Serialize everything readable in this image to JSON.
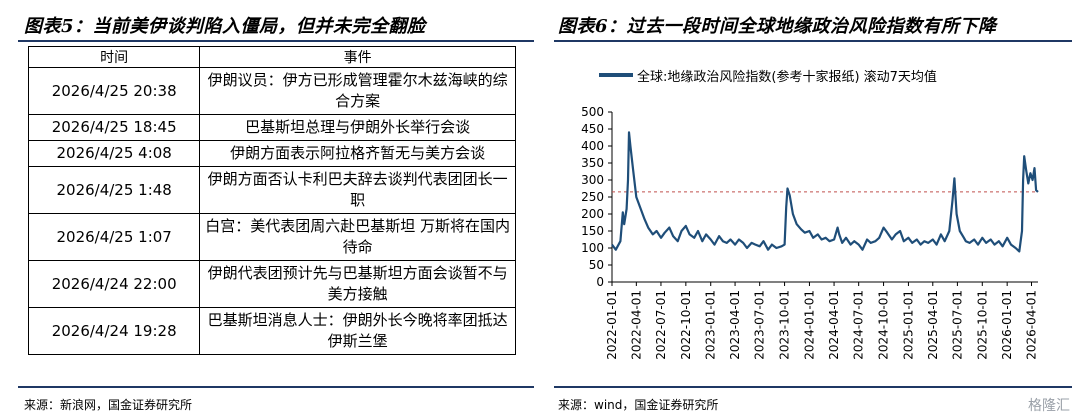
{
  "left_figure": {
    "title": "图表5：当前美伊谈判陷入僵局，但并未完全翻脸",
    "source": "来源：新浪网，国金证券研究所",
    "table": {
      "headers": [
        "时间",
        "事件"
      ],
      "rows": [
        {
          "time": "2026/4/25 20:38",
          "event": "伊朗议员：伊方已形成管理霍尔木兹海峡的综合方案"
        },
        {
          "time": "2026/4/25 18:45",
          "event": "巴基斯坦总理与伊朗外长举行会谈"
        },
        {
          "time": "2026/4/25 4:08",
          "event": "伊朗方面表示阿拉格齐暂无与美方会谈"
        },
        {
          "time": "2026/4/25 1:48",
          "event": "伊朗方面否认卡利巴夫辞去谈判代表团团长一职"
        },
        {
          "time": "2026/4/25 1:07",
          "event": "白宫：美代表团周六赴巴基斯坦 万斯将在国内待命"
        },
        {
          "time": "2026/4/24 22:00",
          "event": "伊朗代表团预计先与巴基斯坦方面会谈暂不与美方接触"
        },
        {
          "time": "2026/4/24 19:28",
          "event": "巴基斯坦消息人士：伊朗外长今晚将率团抵达伊斯兰堡"
        }
      ]
    }
  },
  "right_figure": {
    "title": "图表6：过去一段时间全球地缘政治风险指数有所下降",
    "source": "来源：wind，国金证券研究所"
  },
  "chart_data": {
    "type": "line",
    "title": "",
    "xlabel": "",
    "ylabel": "",
    "ylim": [
      0,
      500
    ],
    "yticks": [
      0,
      50,
      100,
      150,
      200,
      250,
      300,
      350,
      400,
      450,
      500
    ],
    "xticks": [
      "2022-01-01",
      "2022-04-01",
      "2022-07-01",
      "2022-10-01",
      "2023-01-01",
      "2023-04-01",
      "2023-07-01",
      "2023-10-01",
      "2024-01-01",
      "2024-04-01",
      "2024-07-01",
      "2024-10-01",
      "2025-01-01",
      "2025-04-01",
      "2025-07-01",
      "2025-10-01",
      "2026-01-01",
      "2026-04-01"
    ],
    "xrange": [
      "2022-01-01",
      "2026-04-25"
    ],
    "grid": false,
    "legend": "top-left",
    "reference_line": {
      "value": 265,
      "color": "#c0504d",
      "style": "dashed"
    },
    "series": [
      {
        "name": "全球:地缘政治风险指数(参考十家报纸) 滚动7天均值",
        "color": "#1f4e79",
        "points": [
          [
            "2022-01-01",
            110
          ],
          [
            "2022-01-15",
            95
          ],
          [
            "2022-02-01",
            120
          ],
          [
            "2022-02-10",
            205
          ],
          [
            "2022-02-15",
            170
          ],
          [
            "2022-02-24",
            215
          ],
          [
            "2022-03-01",
            300
          ],
          [
            "2022-03-05",
            440
          ],
          [
            "2022-03-10",
            400
          ],
          [
            "2022-03-20",
            330
          ],
          [
            "2022-04-01",
            250
          ],
          [
            "2022-04-15",
            220
          ],
          [
            "2022-05-01",
            185
          ],
          [
            "2022-05-15",
            160
          ],
          [
            "2022-06-01",
            140
          ],
          [
            "2022-06-15",
            150
          ],
          [
            "2022-07-01",
            130
          ],
          [
            "2022-07-15",
            145
          ],
          [
            "2022-08-01",
            160
          ],
          [
            "2022-08-15",
            135
          ],
          [
            "2022-09-01",
            120
          ],
          [
            "2022-09-15",
            150
          ],
          [
            "2022-10-01",
            165
          ],
          [
            "2022-10-15",
            140
          ],
          [
            "2022-11-01",
            130
          ],
          [
            "2022-11-15",
            150
          ],
          [
            "2022-12-01",
            120
          ],
          [
            "2022-12-15",
            140
          ],
          [
            "2023-01-01",
            125
          ],
          [
            "2023-01-15",
            110
          ],
          [
            "2023-02-01",
            135
          ],
          [
            "2023-02-15",
            120
          ],
          [
            "2023-03-01",
            115
          ],
          [
            "2023-03-15",
            125
          ],
          [
            "2023-04-01",
            110
          ],
          [
            "2023-04-15",
            125
          ],
          [
            "2023-05-01",
            115
          ],
          [
            "2023-05-15",
            100
          ],
          [
            "2023-06-01",
            115
          ],
          [
            "2023-06-15",
            110
          ],
          [
            "2023-07-01",
            105
          ],
          [
            "2023-07-15",
            120
          ],
          [
            "2023-08-01",
            95
          ],
          [
            "2023-08-15",
            110
          ],
          [
            "2023-09-01",
            100
          ],
          [
            "2023-09-20",
            105
          ],
          [
            "2023-10-01",
            110
          ],
          [
            "2023-10-07",
            220
          ],
          [
            "2023-10-12",
            275
          ],
          [
            "2023-10-20",
            255
          ],
          [
            "2023-11-01",
            200
          ],
          [
            "2023-11-15",
            170
          ],
          [
            "2023-12-01",
            155
          ],
          [
            "2023-12-15",
            145
          ],
          [
            "2024-01-01",
            150
          ],
          [
            "2024-01-15",
            130
          ],
          [
            "2024-02-01",
            140
          ],
          [
            "2024-02-15",
            125
          ],
          [
            "2024-03-01",
            130
          ],
          [
            "2024-03-15",
            120
          ],
          [
            "2024-04-01",
            125
          ],
          [
            "2024-04-14",
            160
          ],
          [
            "2024-04-20",
            140
          ],
          [
            "2024-05-01",
            115
          ],
          [
            "2024-05-15",
            130
          ],
          [
            "2024-06-01",
            110
          ],
          [
            "2024-06-15",
            120
          ],
          [
            "2024-07-01",
            110
          ],
          [
            "2024-07-15",
            95
          ],
          [
            "2024-08-01",
            125
          ],
          [
            "2024-08-15",
            115
          ],
          [
            "2024-09-01",
            120
          ],
          [
            "2024-09-15",
            130
          ],
          [
            "2024-10-01",
            160
          ],
          [
            "2024-10-15",
            145
          ],
          [
            "2024-11-01",
            125
          ],
          [
            "2024-11-15",
            140
          ],
          [
            "2024-12-01",
            150
          ],
          [
            "2024-12-15",
            120
          ],
          [
            "2025-01-01",
            130
          ],
          [
            "2025-01-15",
            115
          ],
          [
            "2025-02-01",
            125
          ],
          [
            "2025-02-15",
            110
          ],
          [
            "2025-03-01",
            120
          ],
          [
            "2025-03-15",
            115
          ],
          [
            "2025-04-01",
            125
          ],
          [
            "2025-04-15",
            110
          ],
          [
            "2025-05-01",
            140
          ],
          [
            "2025-05-15",
            120
          ],
          [
            "2025-06-01",
            150
          ],
          [
            "2025-06-13",
            240
          ],
          [
            "2025-06-20",
            305
          ],
          [
            "2025-06-28",
            200
          ],
          [
            "2025-07-10",
            150
          ],
          [
            "2025-07-25",
            130
          ],
          [
            "2025-08-01",
            120
          ],
          [
            "2025-08-15",
            115
          ],
          [
            "2025-09-01",
            125
          ],
          [
            "2025-09-15",
            110
          ],
          [
            "2025-10-01",
            130
          ],
          [
            "2025-10-15",
            115
          ],
          [
            "2025-11-01",
            125
          ],
          [
            "2025-11-15",
            110
          ],
          [
            "2025-12-01",
            120
          ],
          [
            "2025-12-15",
            105
          ],
          [
            "2026-01-01",
            130
          ],
          [
            "2026-01-15",
            110
          ],
          [
            "2026-02-01",
            100
          ],
          [
            "2026-02-15",
            90
          ],
          [
            "2026-02-25",
            150
          ],
          [
            "2026-03-01",
            300
          ],
          [
            "2026-03-05",
            370
          ],
          [
            "2026-03-12",
            330
          ],
          [
            "2026-03-20",
            290
          ],
          [
            "2026-03-28",
            320
          ],
          [
            "2026-04-05",
            300
          ],
          [
            "2026-04-12",
            335
          ],
          [
            "2026-04-18",
            270
          ],
          [
            "2026-04-25",
            265
          ]
        ]
      }
    ]
  },
  "watermark": "格隆汇"
}
